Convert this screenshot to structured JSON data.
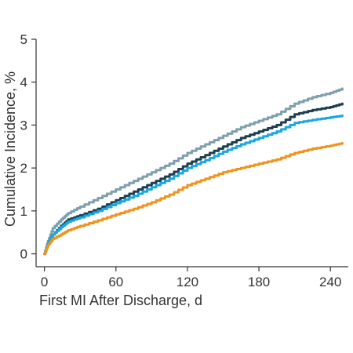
{
  "chart_data": {
    "type": "line",
    "title": "",
    "xlabel": "First MI After Discharge, d",
    "ylabel": "Cumulative Incidence, %",
    "xlim": [
      -7,
      255
    ],
    "ylim": [
      -0.3,
      5
    ],
    "x_ticks": [
      0,
      60,
      120,
      180,
      240
    ],
    "y_ticks": [
      0,
      1,
      2,
      3,
      4,
      5
    ],
    "grid": false,
    "legend": "none",
    "series": [
      {
        "color": "#7f9fae",
        "points": [
          [
            0,
            0
          ],
          [
            3,
            0.3
          ],
          [
            7,
            0.6
          ],
          [
            14,
            0.8
          ],
          [
            20,
            0.95
          ],
          [
            30,
            1.1
          ],
          [
            45,
            1.3
          ],
          [
            60,
            1.5
          ],
          [
            75,
            1.7
          ],
          [
            90,
            1.9
          ],
          [
            105,
            2.1
          ],
          [
            120,
            2.35
          ],
          [
            135,
            2.55
          ],
          [
            150,
            2.75
          ],
          [
            165,
            2.95
          ],
          [
            180,
            3.1
          ],
          [
            195,
            3.25
          ],
          [
            210,
            3.5
          ],
          [
            225,
            3.65
          ],
          [
            240,
            3.75
          ],
          [
            250,
            3.85
          ]
        ]
      },
      {
        "color": "#1e3f4f",
        "points": [
          [
            0,
            0
          ],
          [
            3,
            0.25
          ],
          [
            7,
            0.45
          ],
          [
            14,
            0.65
          ],
          [
            20,
            0.8
          ],
          [
            30,
            0.9
          ],
          [
            45,
            1.05
          ],
          [
            60,
            1.25
          ],
          [
            75,
            1.45
          ],
          [
            90,
            1.65
          ],
          [
            105,
            1.85
          ],
          [
            120,
            2.1
          ],
          [
            135,
            2.3
          ],
          [
            150,
            2.5
          ],
          [
            165,
            2.7
          ],
          [
            180,
            2.85
          ],
          [
            195,
            3.0
          ],
          [
            210,
            3.25
          ],
          [
            225,
            3.35
          ],
          [
            240,
            3.42
          ],
          [
            250,
            3.5
          ]
        ]
      },
      {
        "color": "#1aa7e0",
        "points": [
          [
            0,
            0
          ],
          [
            3,
            0.25
          ],
          [
            7,
            0.45
          ],
          [
            14,
            0.62
          ],
          [
            20,
            0.75
          ],
          [
            30,
            0.85
          ],
          [
            45,
            1.0
          ],
          [
            60,
            1.18
          ],
          [
            75,
            1.35
          ],
          [
            90,
            1.55
          ],
          [
            105,
            1.75
          ],
          [
            120,
            2.0
          ],
          [
            135,
            2.18
          ],
          [
            150,
            2.38
          ],
          [
            165,
            2.55
          ],
          [
            180,
            2.7
          ],
          [
            195,
            2.85
          ],
          [
            210,
            3.05
          ],
          [
            225,
            3.12
          ],
          [
            240,
            3.18
          ],
          [
            250,
            3.22
          ]
        ]
      },
      {
        "color": "#f0931e",
        "points": [
          [
            0,
            0
          ],
          [
            3,
            0.2
          ],
          [
            7,
            0.35
          ],
          [
            14,
            0.45
          ],
          [
            20,
            0.55
          ],
          [
            30,
            0.65
          ],
          [
            45,
            0.78
          ],
          [
            60,
            0.92
          ],
          [
            75,
            1.05
          ],
          [
            90,
            1.2
          ],
          [
            105,
            1.38
          ],
          [
            120,
            1.6
          ],
          [
            135,
            1.75
          ],
          [
            150,
            1.9
          ],
          [
            165,
            2.0
          ],
          [
            180,
            2.1
          ],
          [
            195,
            2.2
          ],
          [
            210,
            2.35
          ],
          [
            225,
            2.45
          ],
          [
            240,
            2.52
          ],
          [
            250,
            2.58
          ]
        ]
      }
    ]
  }
}
